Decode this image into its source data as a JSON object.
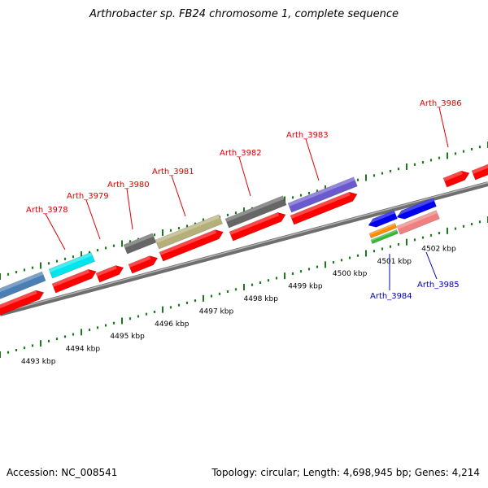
{
  "title": "Arthrobacter sp. FB24 chromosome 1, complete sequence",
  "accession": "Accession: NC_008541",
  "summary": "Topology: circular; Length: 4,698,945 bp; Genes: 4,214",
  "colors": {
    "backbone": "#8a8a8a",
    "tick": "#1a7a1a",
    "cds": "#ff0000",
    "label_fwd": "#dd0000",
    "label_rev": "#0000bb"
  },
  "scale_labels": [
    {
      "text": "4493 kbp",
      "kbp": 4493
    },
    {
      "text": "4494 kbp",
      "kbp": 4494
    },
    {
      "text": "4495 kbp",
      "kbp": 4495
    },
    {
      "text": "4496 kbp",
      "kbp": 4496
    },
    {
      "text": "4497 kbp",
      "kbp": 4497
    },
    {
      "text": "4498 kbp",
      "kbp": 4498
    },
    {
      "text": "4499 kbp",
      "kbp": 4499
    },
    {
      "text": "4500 kbp",
      "kbp": 4500
    },
    {
      "text": "4501 kbp",
      "kbp": 4501
    },
    {
      "text": "4502 kbp",
      "kbp": 4502
    }
  ],
  "genes_forward": [
    {
      "name": "",
      "color": "#4a7fb5"
    },
    {
      "name": "Arth_3978",
      "color": "#00e5ee"
    },
    {
      "name": "Arth_3979",
      "color": "#ff0000"
    },
    {
      "name": "Arth_3980",
      "color": "#666666"
    },
    {
      "name": "Arth_3981",
      "color": "#b5b07a"
    },
    {
      "name": "Arth_3982",
      "color": "#666666"
    },
    {
      "name": "Arth_3983",
      "color": "#6a5acd"
    },
    {
      "name": "Arth_3986",
      "color": "#ff0000"
    }
  ],
  "genes_reverse": [
    {
      "name": "Arth_3984",
      "color": "#0000ee"
    },
    {
      "name": "Arth_3985",
      "color": "#0000ee"
    }
  ]
}
